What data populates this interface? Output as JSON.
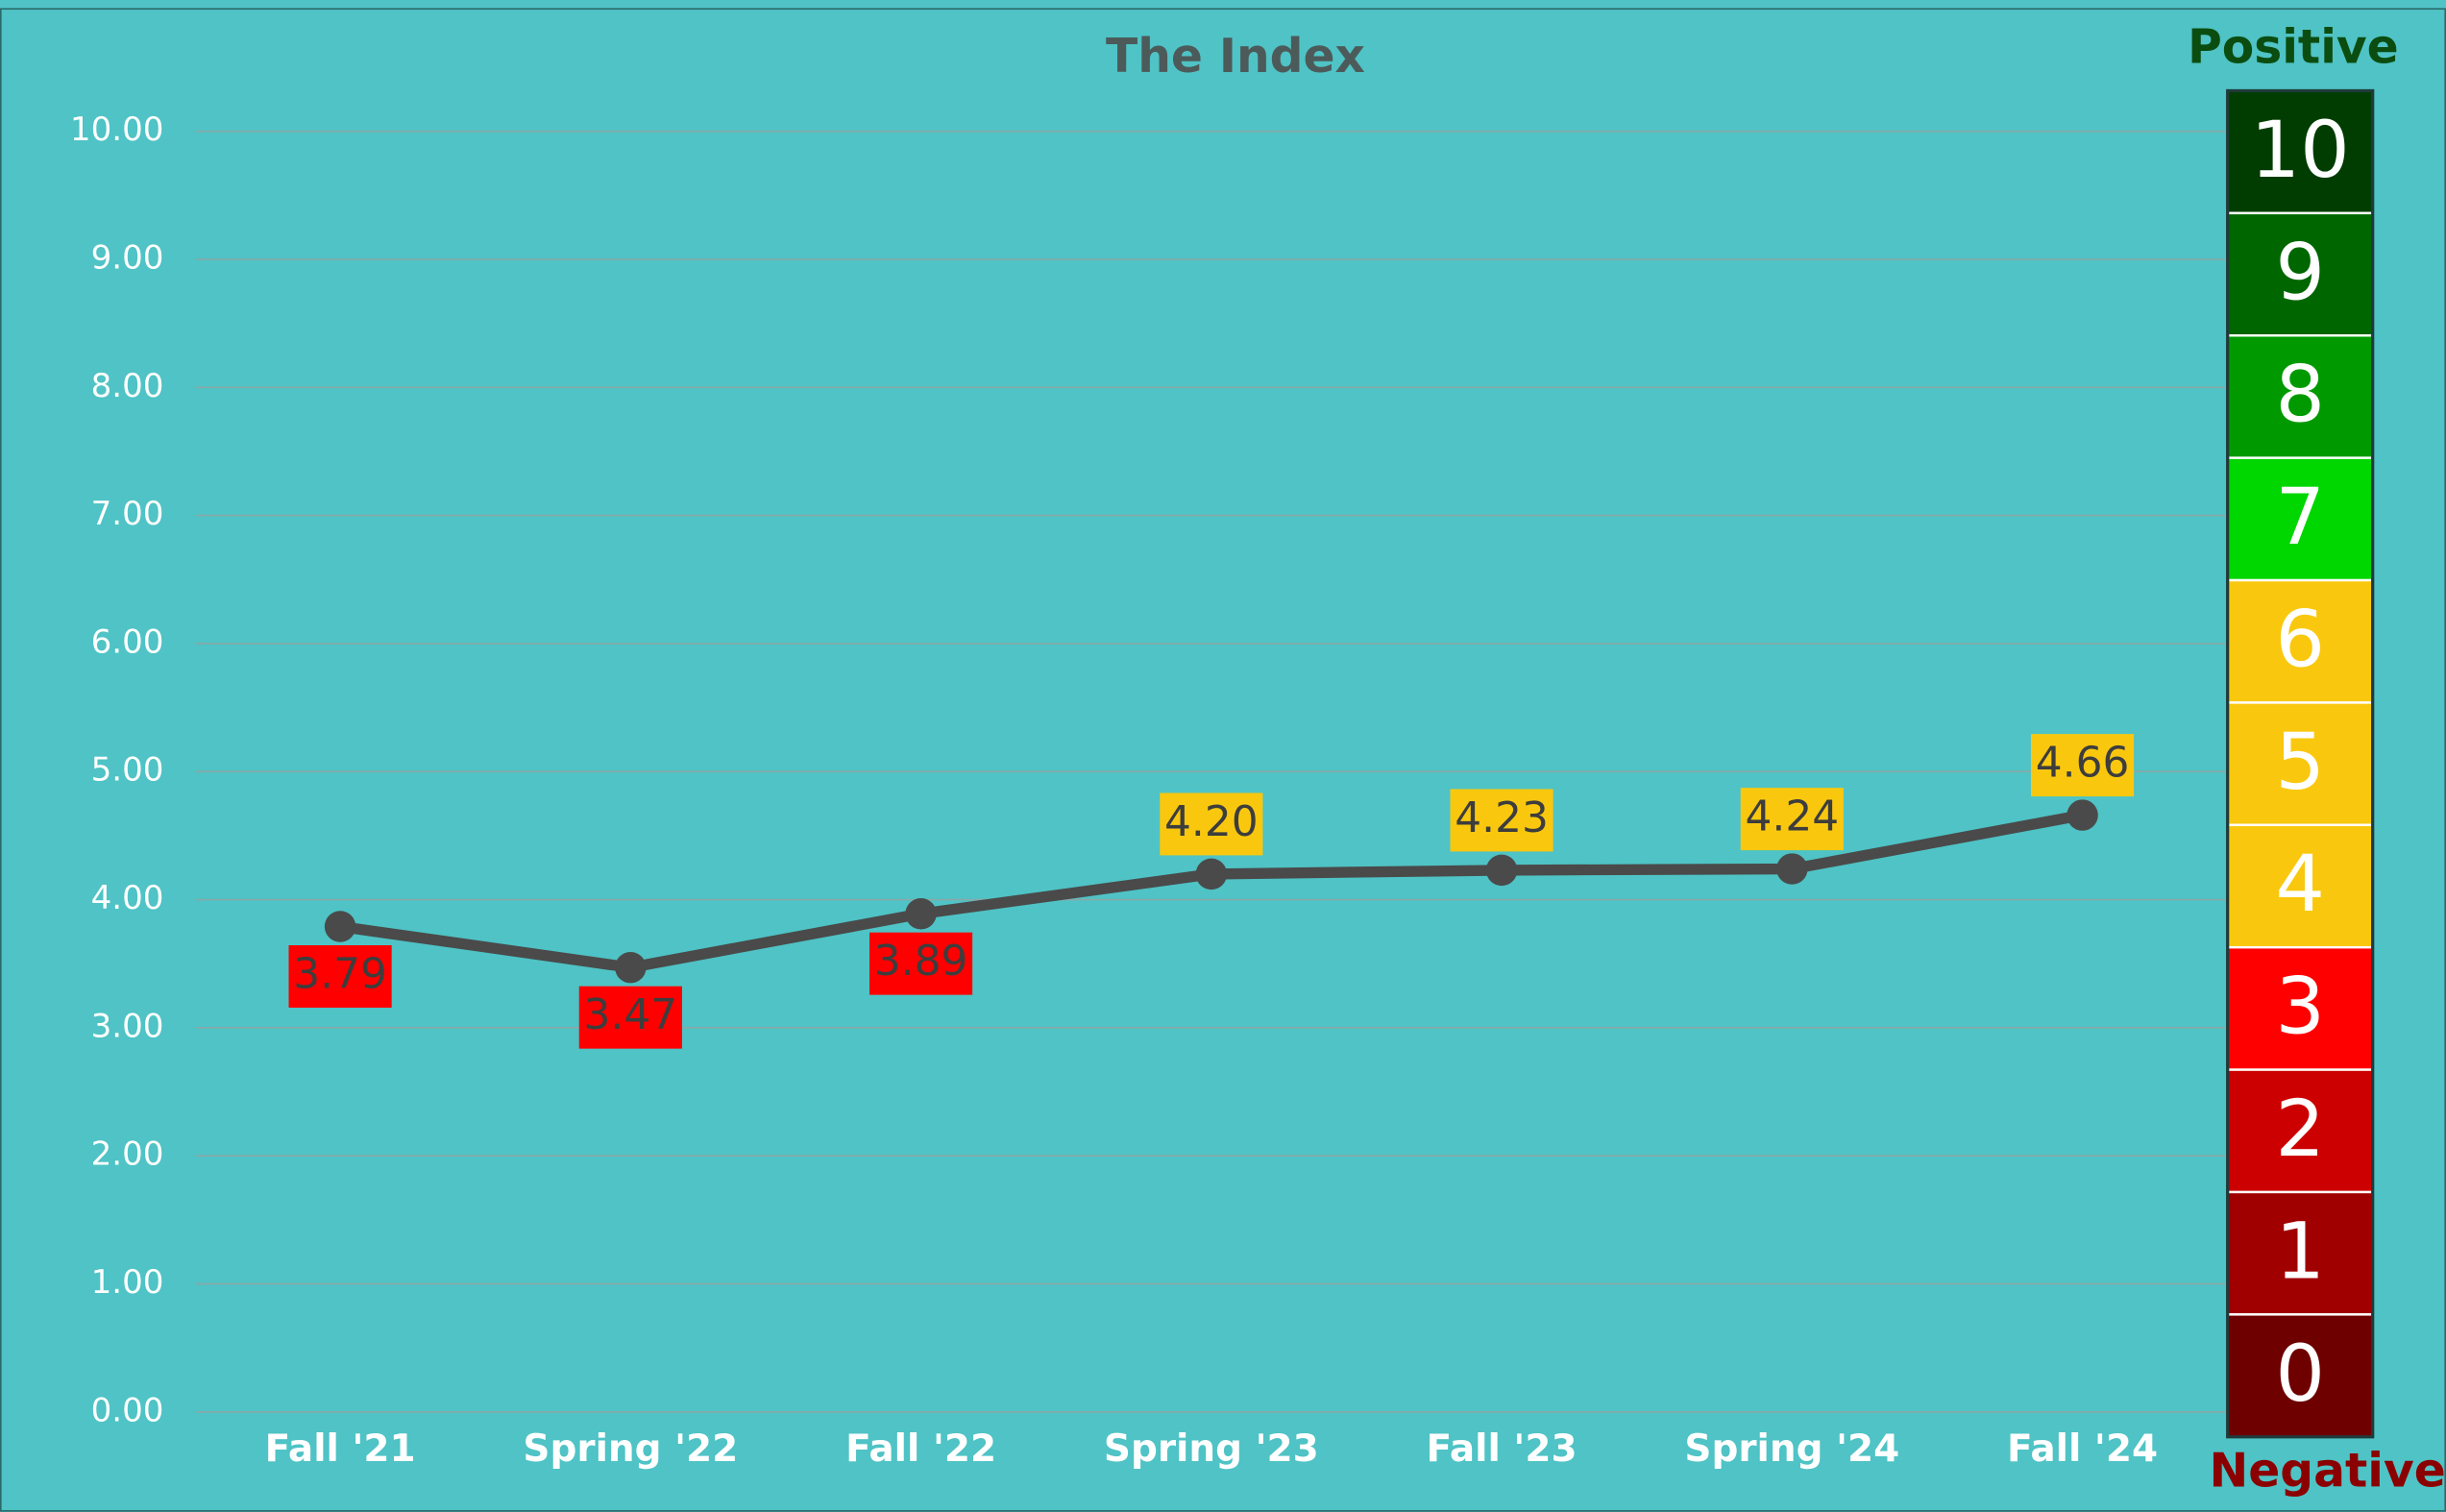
{
  "chart_data": {
    "type": "line",
    "title": "The Index",
    "categories": [
      "Fall '21",
      "Spring '22",
      "Fall '22",
      "Spring '23",
      "Fall '23",
      "Spring '24",
      "Fall '24"
    ],
    "series": [
      {
        "name": "The Index",
        "color": "#4a4a4a",
        "values": [
          3.79,
          3.47,
          3.89,
          4.2,
          4.23,
          4.24,
          4.66
        ],
        "value_labels": [
          "3.79",
          "3.47",
          "3.89",
          "4.20",
          "4.23",
          "4.24",
          "4.66"
        ],
        "label_colors": [
          "#ff0000",
          "#ff0000",
          "#ff0000",
          "#f9c80e",
          "#f9c80e",
          "#f9c80e",
          "#f9c80e"
        ],
        "label_positions": [
          "below",
          "below",
          "below",
          "above",
          "above",
          "above",
          "above"
        ]
      }
    ],
    "ylim": [
      0,
      10
    ],
    "yticks": [
      {
        "value": 0,
        "label": "0.00"
      },
      {
        "value": 1,
        "label": "1.00"
      },
      {
        "value": 2,
        "label": "2.00"
      },
      {
        "value": 3,
        "label": "3.00"
      },
      {
        "value": 4,
        "label": "4.00"
      },
      {
        "value": 5,
        "label": "5.00"
      },
      {
        "value": 6,
        "label": "6.00"
      },
      {
        "value": 7,
        "label": "7.00"
      },
      {
        "value": 8,
        "label": "8.00"
      },
      {
        "value": 9,
        "label": "9.00"
      },
      {
        "value": 10,
        "label": "10.00"
      }
    ],
    "grid": true,
    "scale_top_label": "Positive",
    "scale_bottom_label": "Negative",
    "scale_levels": [
      {
        "value": 10,
        "color": "#013d01"
      },
      {
        "value": 9,
        "color": "#006600"
      },
      {
        "value": 8,
        "color": "#009a00"
      },
      {
        "value": 7,
        "color": "#00d600"
      },
      {
        "value": 6,
        "color": "#f9c80e"
      },
      {
        "value": 5,
        "color": "#f9c80e"
      },
      {
        "value": 4,
        "color": "#f9c80e"
      },
      {
        "value": 3,
        "color": "#ff0000"
      },
      {
        "value": 2,
        "color": "#cc0000"
      },
      {
        "value": 1,
        "color": "#a00000"
      },
      {
        "value": 0,
        "color": "#6e0000"
      }
    ]
  }
}
